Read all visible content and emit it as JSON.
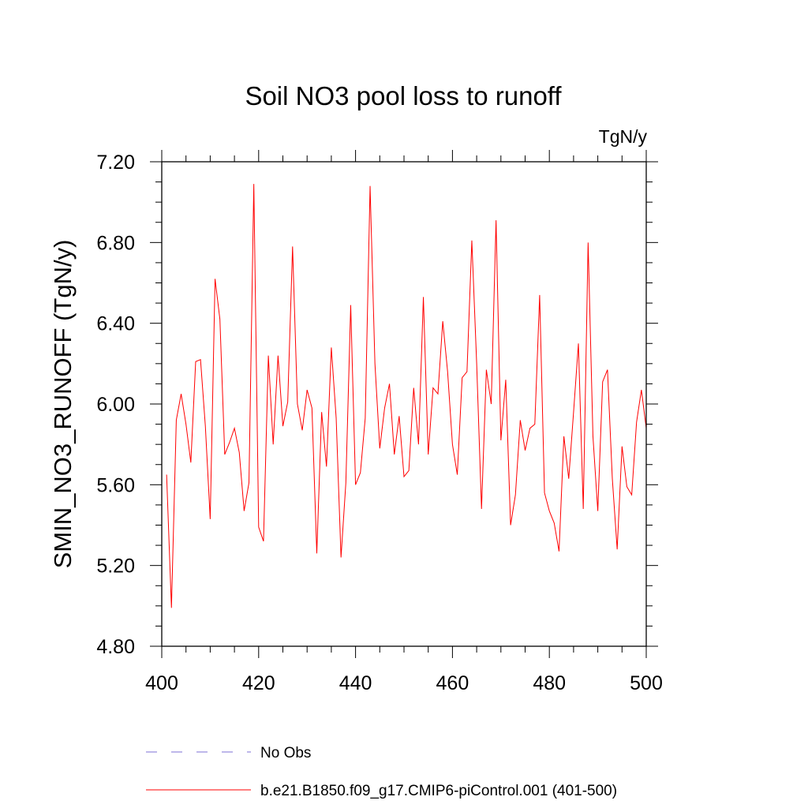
{
  "chart_data": {
    "type": "line",
    "title": "Soil NO3 pool loss to runoff",
    "units": "TgN/y",
    "ylabel": "SMIN_NO3_RUNOFF  (TgN/y)",
    "xlabel": "",
    "xlim": [
      400,
      500
    ],
    "ylim": [
      4.8,
      7.2
    ],
    "xticks": [
      "400",
      "420",
      "440",
      "460",
      "480",
      "500"
    ],
    "yticks": [
      "4.80",
      "5.20",
      "5.60",
      "6.00",
      "6.40",
      "6.80",
      "7.20"
    ],
    "grid": false,
    "legend": "bottom",
    "series": [
      {
        "name": "b.e21.B1850.f09_g17.CMIP6-piControl.001 (401-500)",
        "color": "#ff0000",
        "x": [
          401,
          402,
          403,
          404,
          405,
          406,
          407,
          408,
          409,
          410,
          411,
          412,
          413,
          414,
          415,
          416,
          417,
          418,
          419,
          420,
          421,
          422,
          423,
          424,
          425,
          426,
          427,
          428,
          429,
          430,
          431,
          432,
          433,
          434,
          435,
          436,
          437,
          438,
          439,
          440,
          441,
          442,
          443,
          444,
          445,
          446,
          447,
          448,
          449,
          450,
          451,
          452,
          453,
          454,
          455,
          456,
          457,
          458,
          459,
          460,
          461,
          462,
          463,
          464,
          465,
          466,
          467,
          468,
          469,
          470,
          471,
          472,
          473,
          474,
          475,
          476,
          477,
          478,
          479,
          480,
          481,
          482,
          483,
          484,
          485,
          486,
          487,
          488,
          489,
          490,
          491,
          492,
          493,
          494,
          495,
          496,
          497,
          498,
          499,
          500
        ],
        "values": [
          5.65,
          4.99,
          5.92,
          6.05,
          5.9,
          5.71,
          6.21,
          6.22,
          5.89,
          5.43,
          6.62,
          6.42,
          5.75,
          5.81,
          5.88,
          5.76,
          5.47,
          5.61,
          7.09,
          5.39,
          5.32,
          6.24,
          5.8,
          6.24,
          5.89,
          6.01,
          6.78,
          6.0,
          5.87,
          6.07,
          5.98,
          5.26,
          5.96,
          5.69,
          6.28,
          5.93,
          5.24,
          5.61,
          6.49,
          5.6,
          5.66,
          5.93,
          7.08,
          6.2,
          5.78,
          5.98,
          6.1,
          5.75,
          5.94,
          5.64,
          5.67,
          6.08,
          5.8,
          6.53,
          5.75,
          6.08,
          6.05,
          6.41,
          6.16,
          5.8,
          5.65,
          6.13,
          6.16,
          6.81,
          6.2,
          5.48,
          6.17,
          6.0,
          6.91,
          5.82,
          6.12,
          5.4,
          5.55,
          5.92,
          5.77,
          5.88,
          5.9,
          6.54,
          5.56,
          5.47,
          5.41,
          5.27,
          5.84,
          5.63,
          5.96,
          6.3,
          5.48,
          6.8,
          5.84,
          5.47,
          6.11,
          6.17,
          5.63,
          5.28,
          5.79,
          5.59,
          5.55,
          5.91,
          6.07,
          5.88
        ]
      },
      {
        "name": "No Obs",
        "color": "#7c6fd6",
        "x": [],
        "values": []
      }
    ]
  }
}
